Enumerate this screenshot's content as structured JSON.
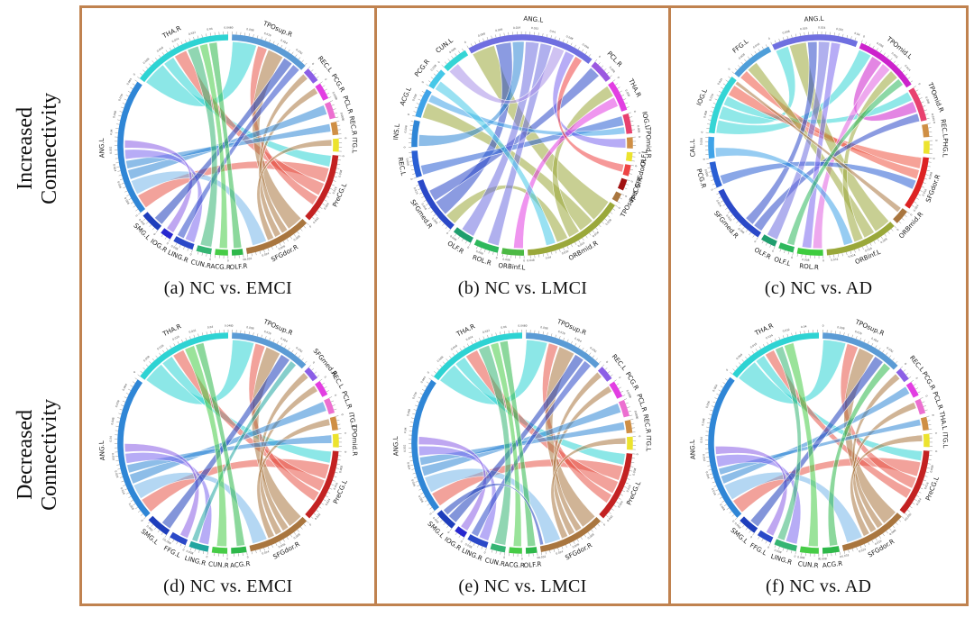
{
  "figure": {
    "border_color": "#c0824f",
    "background": "#ffffff",
    "rows": [
      {
        "line1": "Increased",
        "line2": "Connectivity"
      },
      {
        "line1": "Decreased",
        "line2": "Connectivity"
      }
    ]
  },
  "chart_data": [
    {
      "type": "chord",
      "id": "a",
      "caption": "(a) NC vs. EMCI",
      "start_deg": 2,
      "gap_deg": 2,
      "axis": {
        "tick_label_step": 0.008,
        "units_per_degree": 0.001
      },
      "sectors": [
        [
          "TPOsup.R",
          "#5b9bd5",
          43
        ],
        [
          "REC.L",
          "#8b5fe6",
          8
        ],
        [
          "PCG.R",
          "#e23ee2",
          9
        ],
        [
          "PCL.R",
          "#ec6fd0",
          9
        ],
        [
          "REC.R",
          "#cf8f45",
          7
        ],
        [
          "ITG.L",
          "#ece32e",
          7
        ],
        [
          "PreCG.L",
          "#c32222",
          38
        ],
        [
          "SFGdor.R",
          "#a9763f",
          36
        ],
        [
          "OLF.R",
          "#2eb84a",
          6
        ],
        [
          "ACG.R",
          "#47cc47",
          7
        ],
        [
          "CUN.R",
          "#35b573",
          8
        ],
        [
          "LING.R",
          "#2b49c8",
          11
        ],
        [
          "IOG.R",
          "#2727cf",
          6
        ],
        [
          "SMG.L",
          "#1e3ebc",
          11
        ],
        [
          "ANG.L",
          "#2f86d6",
          74
        ],
        [
          "THA.R",
          "#2ed3d3",
          54
        ]
      ],
      "ribbons": [
        [
          15,
          0,
          15,
          "#2ed3d3"
        ],
        [
          15,
          6,
          7,
          "#2ed3d3"
        ],
        [
          6,
          14,
          9,
          "#e85548"
        ],
        [
          6,
          15,
          8,
          "#e85548"
        ],
        [
          6,
          0,
          6,
          "#e85548"
        ],
        [
          7,
          0,
          10,
          "#a9763f"
        ],
        [
          7,
          1,
          4,
          "#a9763f"
        ],
        [
          7,
          2,
          4,
          "#a9763f"
        ],
        [
          7,
          5,
          4,
          "#a9763f"
        ],
        [
          14,
          7,
          9,
          "#77b7ea"
        ],
        [
          14,
          3,
          6,
          "#2f86d6"
        ],
        [
          14,
          4,
          5,
          "#2f86d6"
        ],
        [
          14,
          11,
          6,
          "#7b68ee"
        ],
        [
          14,
          12,
          5,
          "#8b5fe6"
        ],
        [
          13,
          0,
          6,
          "#1e3ebc"
        ],
        [
          11,
          0,
          5,
          "#2b49c8"
        ],
        [
          10,
          15,
          7,
          "#35b573"
        ],
        [
          9,
          15,
          5,
          "#47cc47"
        ],
        [
          8,
          15,
          5,
          "#2eb84a"
        ]
      ]
    },
    {
      "type": "chord",
      "id": "b",
      "caption": "(b) NC vs. LMCI",
      "start_deg": -29,
      "gap_deg": 2,
      "axis": {
        "tick_label_step": 0.008,
        "units_per_degree": 0.001
      },
      "sectors": [
        [
          "ANG.L",
          "#6f6fe0",
          58
        ],
        [
          "PCL.R",
          "#9b59e0",
          10
        ],
        [
          "THA.R",
          "#e23ee2",
          14
        ],
        [
          "IOG.L",
          "#e8416f",
          9
        ],
        [
          "TPOmid.R",
          "#cf8f45",
          5
        ],
        [
          "OLF.L",
          "#ece32e",
          4
        ],
        [
          "SFGdor.R",
          "#ee4444",
          5
        ],
        [
          "PreCG.R",
          "#a01010",
          5
        ],
        [
          "TPOsup.L",
          "#a9763f",
          4
        ],
        [
          "ORBmid.R",
          "#9aa83a",
          46
        ],
        [
          "ORBinf.L",
          "#4cb944",
          10
        ],
        [
          "ROL.R",
          "#2eb85c",
          11
        ],
        [
          "OLF.R",
          "#1f9e6e",
          9
        ],
        [
          "SFGmed.R",
          "#2b49c8",
          26
        ],
        [
          "REC.L",
          "#2a5fd4",
          12
        ],
        [
          "INS.L",
          "#2f86d6",
          12
        ],
        [
          "ACG.L",
          "#3fa3e8",
          13
        ],
        [
          "PCG.R",
          "#45c8e8",
          9
        ],
        [
          "CUN.L",
          "#35d5d5",
          12
        ]
      ],
      "ribbons": [
        [
          9,
          0,
          12,
          "#9aa83a"
        ],
        [
          9,
          16,
          8,
          "#9aa83a"
        ],
        [
          9,
          2,
          6,
          "#9aa83a"
        ],
        [
          9,
          13,
          6,
          "#9aa83a"
        ],
        [
          13,
          0,
          8,
          "#2b49c8"
        ],
        [
          13,
          1,
          6,
          "#2b49c8"
        ],
        [
          14,
          3,
          5,
          "#2a5fd4"
        ],
        [
          15,
          0,
          6,
          "#2f86d6"
        ],
        [
          16,
          3,
          4,
          "#3fa3e8"
        ],
        [
          0,
          12,
          7,
          "#6f6fe0"
        ],
        [
          0,
          11,
          6,
          "#6f6fe0"
        ],
        [
          0,
          18,
          6,
          "#a78fe8"
        ],
        [
          0,
          4,
          5,
          "#7b68ee"
        ],
        [
          2,
          10,
          5,
          "#e23ee2"
        ],
        [
          17,
          9,
          5,
          "#45c8e8"
        ],
        [
          6,
          0,
          4,
          "#ee4444"
        ]
      ]
    },
    {
      "type": "chord",
      "id": "c",
      "caption": "(c) NC vs. AD",
      "start_deg": -25,
      "gap_deg": 2,
      "axis": {
        "tick_label_step": 0.008,
        "units_per_degree": 0.001
      },
      "sectors": [
        [
          "ANG.L",
          "#6f6fe0",
          40
        ],
        [
          "TPOmid.L",
          "#cc22cc",
          30
        ],
        [
          "TPOmid.R",
          "#e8416f",
          16
        ],
        [
          "REC.L",
          "#cf8f45",
          6
        ],
        [
          "PHG.L",
          "#ece32e",
          6
        ],
        [
          "SFGdor.R",
          "#dd2222",
          25
        ],
        [
          "ORBmid.R",
          "#a9763f",
          7
        ],
        [
          "ORBinf.L",
          "#9aa83a",
          34
        ],
        [
          "ROL.R",
          "#3ecc3e",
          12
        ],
        [
          "OLF.L",
          "#2eb85c",
          7
        ],
        [
          "OLF.R",
          "#1f9e6e",
          7
        ],
        [
          "SFGmed.R",
          "#2b49c8",
          28
        ],
        [
          "PCG.R",
          "#2a5fd4",
          12
        ],
        [
          "CAL.L",
          "#3fa3e8",
          10
        ],
        [
          "IOG.L",
          "#35d5d5",
          28
        ],
        [
          "FFG.L",
          "#4f9ed9",
          20
        ]
      ],
      "ribbons": [
        [
          14,
          1,
          7,
          "#35d5d5"
        ],
        [
          14,
          0,
          7,
          "#35d5d5"
        ],
        [
          14,
          2,
          5,
          "#35d5d5"
        ],
        [
          5,
          14,
          6,
          "#ee5544"
        ],
        [
          5,
          15,
          5,
          "#ee5544"
        ],
        [
          1,
          2,
          6,
          "#cc22cc"
        ],
        [
          1,
          8,
          5,
          "#e060e0"
        ],
        [
          7,
          0,
          9,
          "#9aa83a"
        ],
        [
          7,
          15,
          6,
          "#9aa83a"
        ],
        [
          7,
          1,
          5,
          "#9aa83a"
        ],
        [
          11,
          2,
          5,
          "#2b49c8"
        ],
        [
          11,
          0,
          5,
          "#2b49c8"
        ],
        [
          12,
          5,
          5,
          "#2a5fd4"
        ],
        [
          0,
          10,
          6,
          "#6f6fe0"
        ],
        [
          0,
          8,
          5,
          "#7b68ee"
        ],
        [
          13,
          7,
          5,
          "#3fa3e8"
        ],
        [
          6,
          14,
          3,
          "#a9763f"
        ],
        [
          9,
          1,
          4,
          "#2eb85c"
        ]
      ]
    },
    {
      "type": "chord",
      "id": "d",
      "caption": "(d) NC vs. EMCI",
      "start_deg": 2,
      "gap_deg": 2,
      "axis": {
        "tick_label_step": 0.008,
        "units_per_degree": 0.001
      },
      "sectors": [
        [
          "TPOsup.R",
          "#5b9bd5",
          42
        ],
        [
          "SFGmed.R",
          "#8b5fe6",
          7
        ],
        [
          "REC.L",
          "#e23ee2",
          8
        ],
        [
          "PCL.R",
          "#ec6fd0",
          8
        ],
        [
          "ITG.L",
          "#cf8f45",
          7
        ],
        [
          "TPOmid.R",
          "#ece32e",
          7
        ],
        [
          "PreCG.L",
          "#c32222",
          38
        ],
        [
          "SFGdor.R",
          "#a9763f",
          33
        ],
        [
          "ACG.R",
          "#2eb84a",
          8
        ],
        [
          "CUN.R",
          "#47cc47",
          8
        ],
        [
          "LING.R",
          "#20a5a0",
          10
        ],
        [
          "FFG.L",
          "#2b49c8",
          9
        ],
        [
          "SMG.L",
          "#1e3ebc",
          12
        ],
        [
          "ANG.L",
          "#2f86d6",
          76
        ],
        [
          "THA.R",
          "#2ed3d3",
          52
        ]
      ],
      "ribbons": [
        [
          14,
          0,
          13,
          "#2ed3d3"
        ],
        [
          14,
          6,
          7,
          "#2ed3d3"
        ],
        [
          6,
          13,
          9,
          "#e85548"
        ],
        [
          6,
          14,
          7,
          "#e85548"
        ],
        [
          6,
          0,
          6,
          "#e85548"
        ],
        [
          7,
          0,
          9,
          "#a9763f"
        ],
        [
          7,
          1,
          4,
          "#a9763f"
        ],
        [
          7,
          2,
          4,
          "#a9763f"
        ],
        [
          7,
          4,
          4,
          "#a9763f"
        ],
        [
          13,
          7,
          9,
          "#77b7ea"
        ],
        [
          13,
          3,
          6,
          "#2f86d6"
        ],
        [
          13,
          5,
          5,
          "#2f86d6"
        ],
        [
          13,
          10,
          6,
          "#7b68ee"
        ],
        [
          13,
          11,
          5,
          "#8b5fe6"
        ],
        [
          12,
          0,
          6,
          "#1e3ebc"
        ],
        [
          10,
          0,
          4,
          "#20a5a0"
        ],
        [
          9,
          14,
          6,
          "#47cc47"
        ],
        [
          8,
          14,
          5,
          "#2eb84a"
        ]
      ]
    },
    {
      "type": "chord",
      "id": "e",
      "caption": "(e) NC vs. LMCI",
      "start_deg": 2,
      "gap_deg": 2,
      "axis": {
        "tick_label_step": 0.008,
        "units_per_degree": 0.001
      },
      "sectors": [
        [
          "TPOsup.R",
          "#5b9bd5",
          43
        ],
        [
          "REC.L",
          "#8b5fe6",
          8
        ],
        [
          "PCG.R",
          "#e23ee2",
          9
        ],
        [
          "PCL.R",
          "#ec6fd0",
          9
        ],
        [
          "REC.R",
          "#cf8f45",
          7
        ],
        [
          "ITG.L",
          "#ece32e",
          7
        ],
        [
          "PreCG.L",
          "#c32222",
          38
        ],
        [
          "SFGdor.R",
          "#a9763f",
          36
        ],
        [
          "OLF.R",
          "#2eb84a",
          6
        ],
        [
          "ACG.R",
          "#47cc47",
          7
        ],
        [
          "CUN.R",
          "#35b573",
          8
        ],
        [
          "LING.R",
          "#2b49c8",
          11
        ],
        [
          "IOG.R",
          "#2727cf",
          6
        ],
        [
          "SMG.L",
          "#1e3ebc",
          11
        ],
        [
          "ANG.L",
          "#2f86d6",
          74
        ],
        [
          "THA.R",
          "#2ed3d3",
          54
        ]
      ],
      "ribbons": [
        [
          15,
          0,
          13,
          "#2ed3d3"
        ],
        [
          15,
          6,
          7,
          "#2ed3d3"
        ],
        [
          6,
          14,
          9,
          "#e85548"
        ],
        [
          6,
          15,
          8,
          "#e85548"
        ],
        [
          6,
          0,
          6,
          "#e85548"
        ],
        [
          7,
          0,
          10,
          "#a9763f"
        ],
        [
          7,
          1,
          4,
          "#a9763f"
        ],
        [
          7,
          2,
          4,
          "#a9763f"
        ],
        [
          7,
          5,
          4,
          "#a9763f"
        ],
        [
          14,
          7,
          10,
          "#77b7ea"
        ],
        [
          14,
          3,
          6,
          "#2f86d6"
        ],
        [
          14,
          4,
          5,
          "#2f86d6"
        ],
        [
          14,
          11,
          6,
          "#7b68ee"
        ],
        [
          14,
          12,
          5,
          "#8b5fe6"
        ],
        [
          13,
          0,
          6,
          "#1e3ebc"
        ],
        [
          11,
          0,
          5,
          "#2b49c8"
        ],
        [
          10,
          15,
          7,
          "#35b573"
        ],
        [
          9,
          15,
          5,
          "#47cc47"
        ],
        [
          8,
          15,
          5,
          "#2eb84a"
        ],
        [
          13,
          7,
          4,
          "#1e3ebc"
        ]
      ]
    },
    {
      "type": "chord",
      "id": "f",
      "caption": "(f) NC vs. AD",
      "start_deg": 2,
      "gap_deg": 2,
      "axis": {
        "tick_label_step": 0.008,
        "units_per_degree": 0.001
      },
      "sectors": [
        [
          "TPOsup.R",
          "#5b9bd5",
          44
        ],
        [
          "REC.L",
          "#8b5fe6",
          7
        ],
        [
          "PCG.R",
          "#e23ee2",
          8
        ],
        [
          "PCL.R",
          "#ec6fd0",
          8
        ],
        [
          "THA.L",
          "#cf8f45",
          7
        ],
        [
          "ITG.L",
          "#ece32e",
          7
        ],
        [
          "PreCG.L",
          "#c32222",
          36
        ],
        [
          "SFGdor.R",
          "#a9763f",
          36
        ],
        [
          "ACG.R",
          "#2eb84a",
          9
        ],
        [
          "CUN.R",
          "#47cc47",
          10
        ],
        [
          "LING.R",
          "#35b573",
          12
        ],
        [
          "FFG.L",
          "#2b49c8",
          8
        ],
        [
          "SMG.L",
          "#1e3ebc",
          10
        ],
        [
          "ANG.L",
          "#2f86d6",
          80
        ],
        [
          "THA.R",
          "#2ed3d3",
          52
        ]
      ],
      "ribbons": [
        [
          14,
          0,
          14,
          "#2ed3d3"
        ],
        [
          14,
          6,
          6,
          "#2ed3d3"
        ],
        [
          6,
          13,
          9,
          "#e85548"
        ],
        [
          6,
          0,
          7,
          "#e85548"
        ],
        [
          6,
          14,
          6,
          "#e85548"
        ],
        [
          7,
          0,
          10,
          "#a9763f"
        ],
        [
          7,
          1,
          4,
          "#a9763f"
        ],
        [
          7,
          3,
          4,
          "#a9763f"
        ],
        [
          7,
          5,
          4,
          "#a9763f"
        ],
        [
          13,
          7,
          10,
          "#77b7ea"
        ],
        [
          13,
          2,
          5,
          "#2f86d6"
        ],
        [
          13,
          4,
          4,
          "#2f86d6"
        ],
        [
          13,
          10,
          7,
          "#7b68ee"
        ],
        [
          13,
          11,
          5,
          "#8b5fe6"
        ],
        [
          12,
          0,
          6,
          "#1e3ebc"
        ],
        [
          10,
          14,
          5,
          "#35b573"
        ],
        [
          9,
          14,
          6,
          "#47cc47"
        ],
        [
          8,
          0,
          5,
          "#2eb84a"
        ]
      ]
    }
  ]
}
